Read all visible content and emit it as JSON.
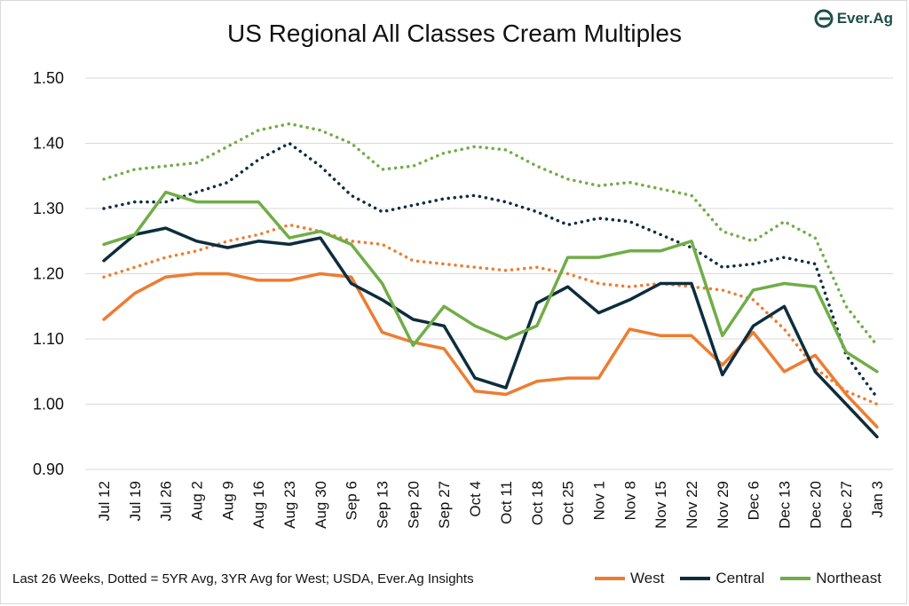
{
  "title": "US Regional All Classes Cream Multiples",
  "logo": {
    "text": "Ever.Ag",
    "icon": "ever-ag-logo-icon"
  },
  "footer_note": "Last 26 Weeks, Dotted = 5YR Avg, 3YR Avg for West; USDA, Ever.Ag Insights",
  "legend": [
    {
      "label": "West",
      "color": "#ed7d31"
    },
    {
      "label": "Central",
      "color": "#0d2d3d"
    },
    {
      "label": "Northeast",
      "color": "#70ad47"
    }
  ],
  "chart_data": {
    "type": "line",
    "title": "US Regional All Classes Cream Multiples",
    "categories": [
      "Jul 12",
      "Jul 19",
      "Jul 26",
      "Aug 2",
      "Aug 9",
      "Aug 16",
      "Aug 23",
      "Aug 30",
      "Sep 6",
      "Sep 13",
      "Sep 20",
      "Sep 27",
      "Oct 4",
      "Oct 11",
      "Oct 18",
      "Oct 25",
      "Nov 1",
      "Nov 8",
      "Nov 15",
      "Nov 22",
      "Nov 29",
      "Dec 6",
      "Dec 13",
      "Dec 20",
      "Dec 27",
      "Jan 3"
    ],
    "ylim": [
      0.9,
      1.5
    ],
    "yticks": [
      "0.90",
      "1.00",
      "1.10",
      "1.20",
      "1.30",
      "1.40",
      "1.50"
    ],
    "grid": true,
    "legend_position": "bottom-right",
    "series": [
      {
        "name": "West",
        "style": "solid",
        "color": "#ed7d31",
        "values": [
          1.13,
          1.17,
          1.195,
          1.2,
          1.2,
          1.19,
          1.19,
          1.2,
          1.195,
          1.11,
          1.095,
          1.085,
          1.02,
          1.015,
          1.035,
          1.04,
          1.04,
          1.115,
          1.105,
          1.105,
          1.06,
          1.11,
          1.05,
          1.075,
          1.015,
          0.965
        ]
      },
      {
        "name": "Central",
        "style": "solid",
        "color": "#0d2d3d",
        "values": [
          1.22,
          1.26,
          1.27,
          1.25,
          1.24,
          1.25,
          1.245,
          1.255,
          1.185,
          1.16,
          1.13,
          1.12,
          1.04,
          1.025,
          1.155,
          1.18,
          1.14,
          1.16,
          1.185,
          1.185,
          1.045,
          1.12,
          1.15,
          1.05,
          1.0,
          0.95
        ]
      },
      {
        "name": "Northeast",
        "style": "solid",
        "color": "#70ad47",
        "values": [
          1.245,
          1.26,
          1.325,
          1.31,
          1.31,
          1.31,
          1.255,
          1.265,
          1.245,
          1.185,
          1.09,
          1.15,
          1.12,
          1.1,
          1.12,
          1.225,
          1.225,
          1.235,
          1.235,
          1.25,
          1.105,
          1.175,
          1.185,
          1.18,
          1.08,
          1.05
        ]
      },
      {
        "style": "dotted",
        "color": "#ed7d31",
        "values": [
          1.195,
          1.21,
          1.225,
          1.235,
          1.25,
          1.26,
          1.275,
          1.265,
          1.25,
          1.245,
          1.22,
          1.215,
          1.21,
          1.205,
          1.21,
          1.2,
          1.185,
          1.18,
          1.185,
          1.18,
          1.175,
          1.16,
          1.115,
          1.055,
          1.02,
          1.0
        ]
      },
      {
        "style": "dotted",
        "color": "#0d2d3d",
        "values": [
          1.3,
          1.31,
          1.31,
          1.325,
          1.34,
          1.375,
          1.4,
          1.365,
          1.32,
          1.295,
          1.305,
          1.315,
          1.32,
          1.31,
          1.295,
          1.275,
          1.285,
          1.28,
          1.26,
          1.24,
          1.21,
          1.215,
          1.225,
          1.215,
          1.075,
          1.01
        ]
      },
      {
        "style": "dotted",
        "color": "#70ad47",
        "values": [
          1.345,
          1.36,
          1.365,
          1.37,
          1.395,
          1.42,
          1.43,
          1.42,
          1.4,
          1.36,
          1.365,
          1.385,
          1.395,
          1.39,
          1.365,
          1.345,
          1.335,
          1.34,
          1.33,
          1.32,
          1.265,
          1.25,
          1.28,
          1.255,
          1.15,
          1.09
        ]
      }
    ]
  }
}
